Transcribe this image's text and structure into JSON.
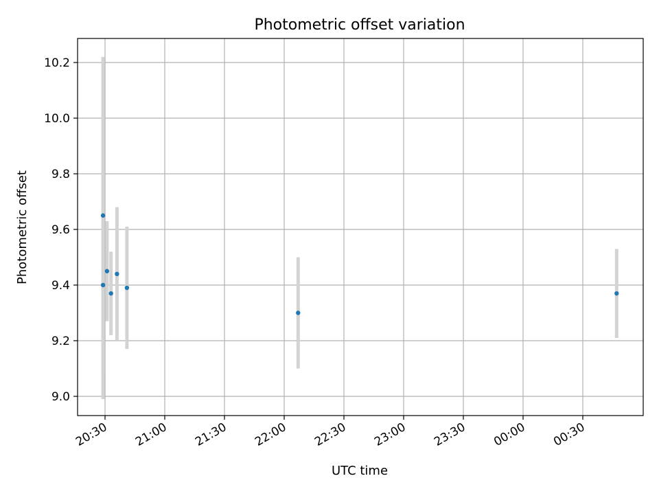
{
  "chart_data": {
    "type": "scatter",
    "title": "Photometric offset variation",
    "xlabel": "UTC time",
    "ylabel": "Photometric offset",
    "x_tick_labels": [
      "20:30",
      "21:00",
      "21:30",
      "22:00",
      "22:30",
      "23:00",
      "23:30",
      "00:00",
      "00:30"
    ],
    "y_tick_labels": [
      "9.0",
      "9.2",
      "9.4",
      "9.6",
      "9.8",
      "10.0",
      "10.2"
    ],
    "y_ticks": [
      9.0,
      9.2,
      9.4,
      9.6,
      9.8,
      10.0,
      10.2
    ],
    "ylim": [
      8.93,
      10.28
    ],
    "grid": true,
    "point_color": "#1f77b4",
    "errorbar_color": "#d3d3d3",
    "points": [
      {
        "time": "20:29",
        "y": 9.65,
        "yerr": 0.57
      },
      {
        "time": "20:29",
        "y": 9.4,
        "yerr": 0.41
      },
      {
        "time": "20:31",
        "y": 9.45,
        "yerr": 0.18
      },
      {
        "time": "20:33",
        "y": 9.37,
        "yerr": 0.15
      },
      {
        "time": "20:36",
        "y": 9.44,
        "yerr": 0.24
      },
      {
        "time": "20:41",
        "y": 9.39,
        "yerr": 0.22
      },
      {
        "time": "22:07",
        "y": 9.3,
        "yerr": 0.2
      },
      {
        "time": "00:47",
        "y": 9.37,
        "yerr": 0.16
      }
    ]
  }
}
